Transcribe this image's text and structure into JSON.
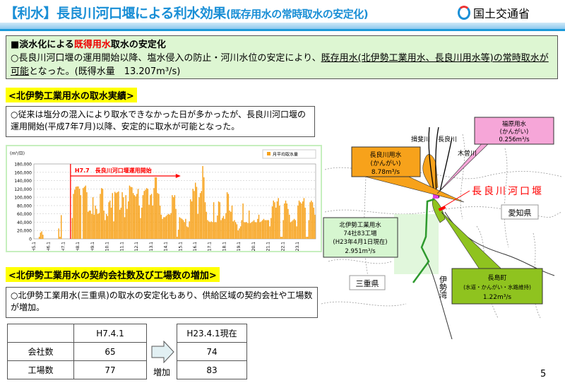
{
  "header": {
    "title_main": "【利水】長良川河口堰による利水効果",
    "title_sub": "(既存用水の常時取水の安定化)",
    "ministry": "国土交通省"
  },
  "summary": {
    "heading_prefix": "■淡水化による",
    "heading_highlight": "既得用水",
    "heading_suffix": "取水の安定化",
    "body_prefix": "○長良川河口堰の運用開始以降、塩水侵入の防止・河川水位の安定により、",
    "body_underlined": "既存用水(北伊勢工業用水、長良川用水等)の常時取水が可能",
    "body_suffix": "となった。(既得水量　13.207m³/s)"
  },
  "section1": {
    "label": "<北伊勢工業用水の取水実績>",
    "text": "○従来は塩分の混入により取水できなかった日が多かったが、長良川河口堰の運用開始(平成7年7月)以降、安定的に取水が可能となった。"
  },
  "chart_data": {
    "type": "bar",
    "title": "",
    "ylabel": "(m³/日)",
    "xlabel": "",
    "ylim": [
      0,
      180000
    ],
    "legend": "月平均取水量",
    "legend_position": "top-right",
    "annotation": "H7.7　長良川河口堰運用開始",
    "yticks": [
      "180,000",
      "160,000",
      "140,000",
      "120,000",
      "100,000",
      "80,000",
      "60,000",
      "40,000",
      "20,000",
      "0"
    ],
    "xticks": [
      "H5.1",
      "H6.1",
      "H7.1",
      "H8.1",
      "H9.1",
      "H10.1",
      "H11.1",
      "H12.1",
      "H13.1",
      "H14.1",
      "H15.1",
      "H16.1",
      "H17.1",
      "H18.1",
      "H19.1",
      "H20.1",
      "H21.1",
      "H22.1",
      "H23.1"
    ],
    "start_month_label": "H5.1",
    "values": [
      0,
      0,
      0,
      0,
      5000,
      15000,
      18000,
      10000,
      0,
      0,
      0,
      0,
      0,
      0,
      0,
      0,
      0,
      0,
      0,
      0,
      25000,
      5000,
      57000,
      0,
      0,
      0,
      0,
      0,
      0,
      0,
      0,
      50000,
      108000,
      118000,
      125000,
      126000,
      126000,
      120000,
      105000,
      0,
      122000,
      125000,
      128000,
      112000,
      65000,
      68000,
      68000,
      60000,
      100000,
      58000,
      80000,
      72000,
      60000,
      62000,
      108000,
      122000,
      120000,
      68000,
      45000,
      60000,
      55000,
      88000,
      92000,
      75000,
      110000,
      42000,
      113000,
      110000,
      112000,
      114000,
      70000,
      75000,
      112000,
      100000,
      52000,
      105000,
      72000,
      90000,
      128000,
      125000,
      124000,
      110000,
      105000,
      102000,
      108000,
      120000,
      80000,
      50000,
      75000,
      105000,
      115000,
      118000,
      122000,
      120000,
      82000,
      105000,
      108000,
      80000,
      122000,
      148000,
      148000,
      110000,
      108000,
      80000,
      58000,
      48000,
      52000,
      52000,
      55000,
      58000,
      60000,
      58000,
      62000,
      105000,
      100000,
      105000,
      72000,
      5000,
      22000,
      52000,
      50000,
      48000,
      45000,
      40000,
      48000,
      30000,
      28000,
      42000,
      95000,
      90000,
      120000,
      115000,
      135000,
      125000,
      60000,
      100000,
      110000,
      115000,
      175000,
      148000,
      88000,
      65000,
      45000,
      42000,
      40000,
      42000,
      40000,
      88000,
      40000,
      40000,
      56000,
      90000,
      88000,
      45000,
      50000,
      55000,
      48000,
      62000,
      112000,
      108000,
      68000,
      65000,
      80000,
      42000,
      45000,
      40000,
      35000,
      20000,
      25000,
      30000,
      45000,
      85000,
      40000,
      40000,
      40000,
      38000,
      68000,
      38000,
      40000,
      42000,
      45000,
      40000,
      40000,
      48000,
      58000,
      40000,
      42000,
      45000,
      48000,
      45000,
      45000,
      45000,
      45000,
      30000,
      50000,
      78000,
      92000,
      88000,
      75000,
      90000,
      98000,
      80000,
      5000,
      5000,
      45000,
      85000,
      92000,
      85000,
      72000,
      58000,
      40000,
      42000,
      45000,
      48000,
      45000,
      30000,
      80000,
      92000,
      88000,
      85000,
      90000,
      98000,
      75000,
      5000,
      5000,
      45000,
      88000,
      92000,
      88000,
      75000,
      58000
    ]
  },
  "section2": {
    "label": "<北伊勢工業用水の契約会社数及び工場数の増加>",
    "text": "○北伊勢工業用水(三重県)の取水の安定化もあり、供給区域の契約会社や工場数が増加。"
  },
  "table": {
    "col_before": "H7.4.1",
    "col_after": "H23.4.1現在",
    "arrow_label": "増加",
    "rows": [
      {
        "label": "会社数",
        "before": "65",
        "after": "74"
      },
      {
        "label": "工場数",
        "before": "77",
        "after": "83"
      }
    ]
  },
  "map": {
    "rivers": [
      "揖斐川",
      "長良川",
      "木曽川"
    ],
    "weir_label": "長良川河口堰",
    "prefs": [
      "愛知県",
      "三重県"
    ],
    "bay": "伊勢湾",
    "nagara": {
      "l1": "長良川用水",
      "l2": "(かんがい)",
      "l3": "8.78m³/s"
    },
    "fukuhara": {
      "l1": "福原用水",
      "l2": "(かんがい)",
      "l3": "0.256m³/s"
    },
    "kitaise": {
      "l1": "北伊勢工業用水",
      "l2": "74社83工場",
      "l3": "(H23年4月1日現在)",
      "l4": "2.951m³/s"
    },
    "nagashima": {
      "l1": "長島町",
      "l2": "(水道・かんがい・水路維持)",
      "l3": "1.22m³/s"
    },
    "colors": {
      "nagara": "#f7a21b",
      "fukuhara": "#f6a6d8",
      "kitaise": "#d6f6d0",
      "nagashima": "#8fc31f",
      "weir": "#ff0000"
    }
  },
  "page_number": "5"
}
